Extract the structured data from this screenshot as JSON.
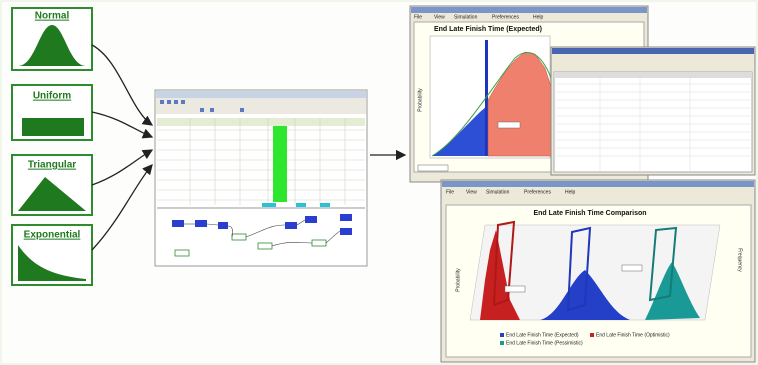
{
  "inputs": {
    "distributions": [
      "Normal",
      "Uniform",
      "Triangular",
      "Exponential"
    ]
  },
  "outputs": {
    "expected_window": {
      "menu": [
        "File",
        "View",
        "Simulation",
        "Preferences",
        "Help"
      ],
      "title": "End Late Finish Time (Expected)",
      "y_label": "Probability"
    },
    "comparison_window": {
      "menu": [
        "File",
        "View",
        "Simulation",
        "Preferences",
        "Help"
      ],
      "title": "End Late Finish Time Comparison",
      "y_label": "Probability",
      "y2_label": "Frequency",
      "legend": [
        "End Late Finish Time (Expected)",
        "End Late Finish Time (Optimistic)",
        "End Late Finish Time (Pessimistic)"
      ]
    }
  }
}
